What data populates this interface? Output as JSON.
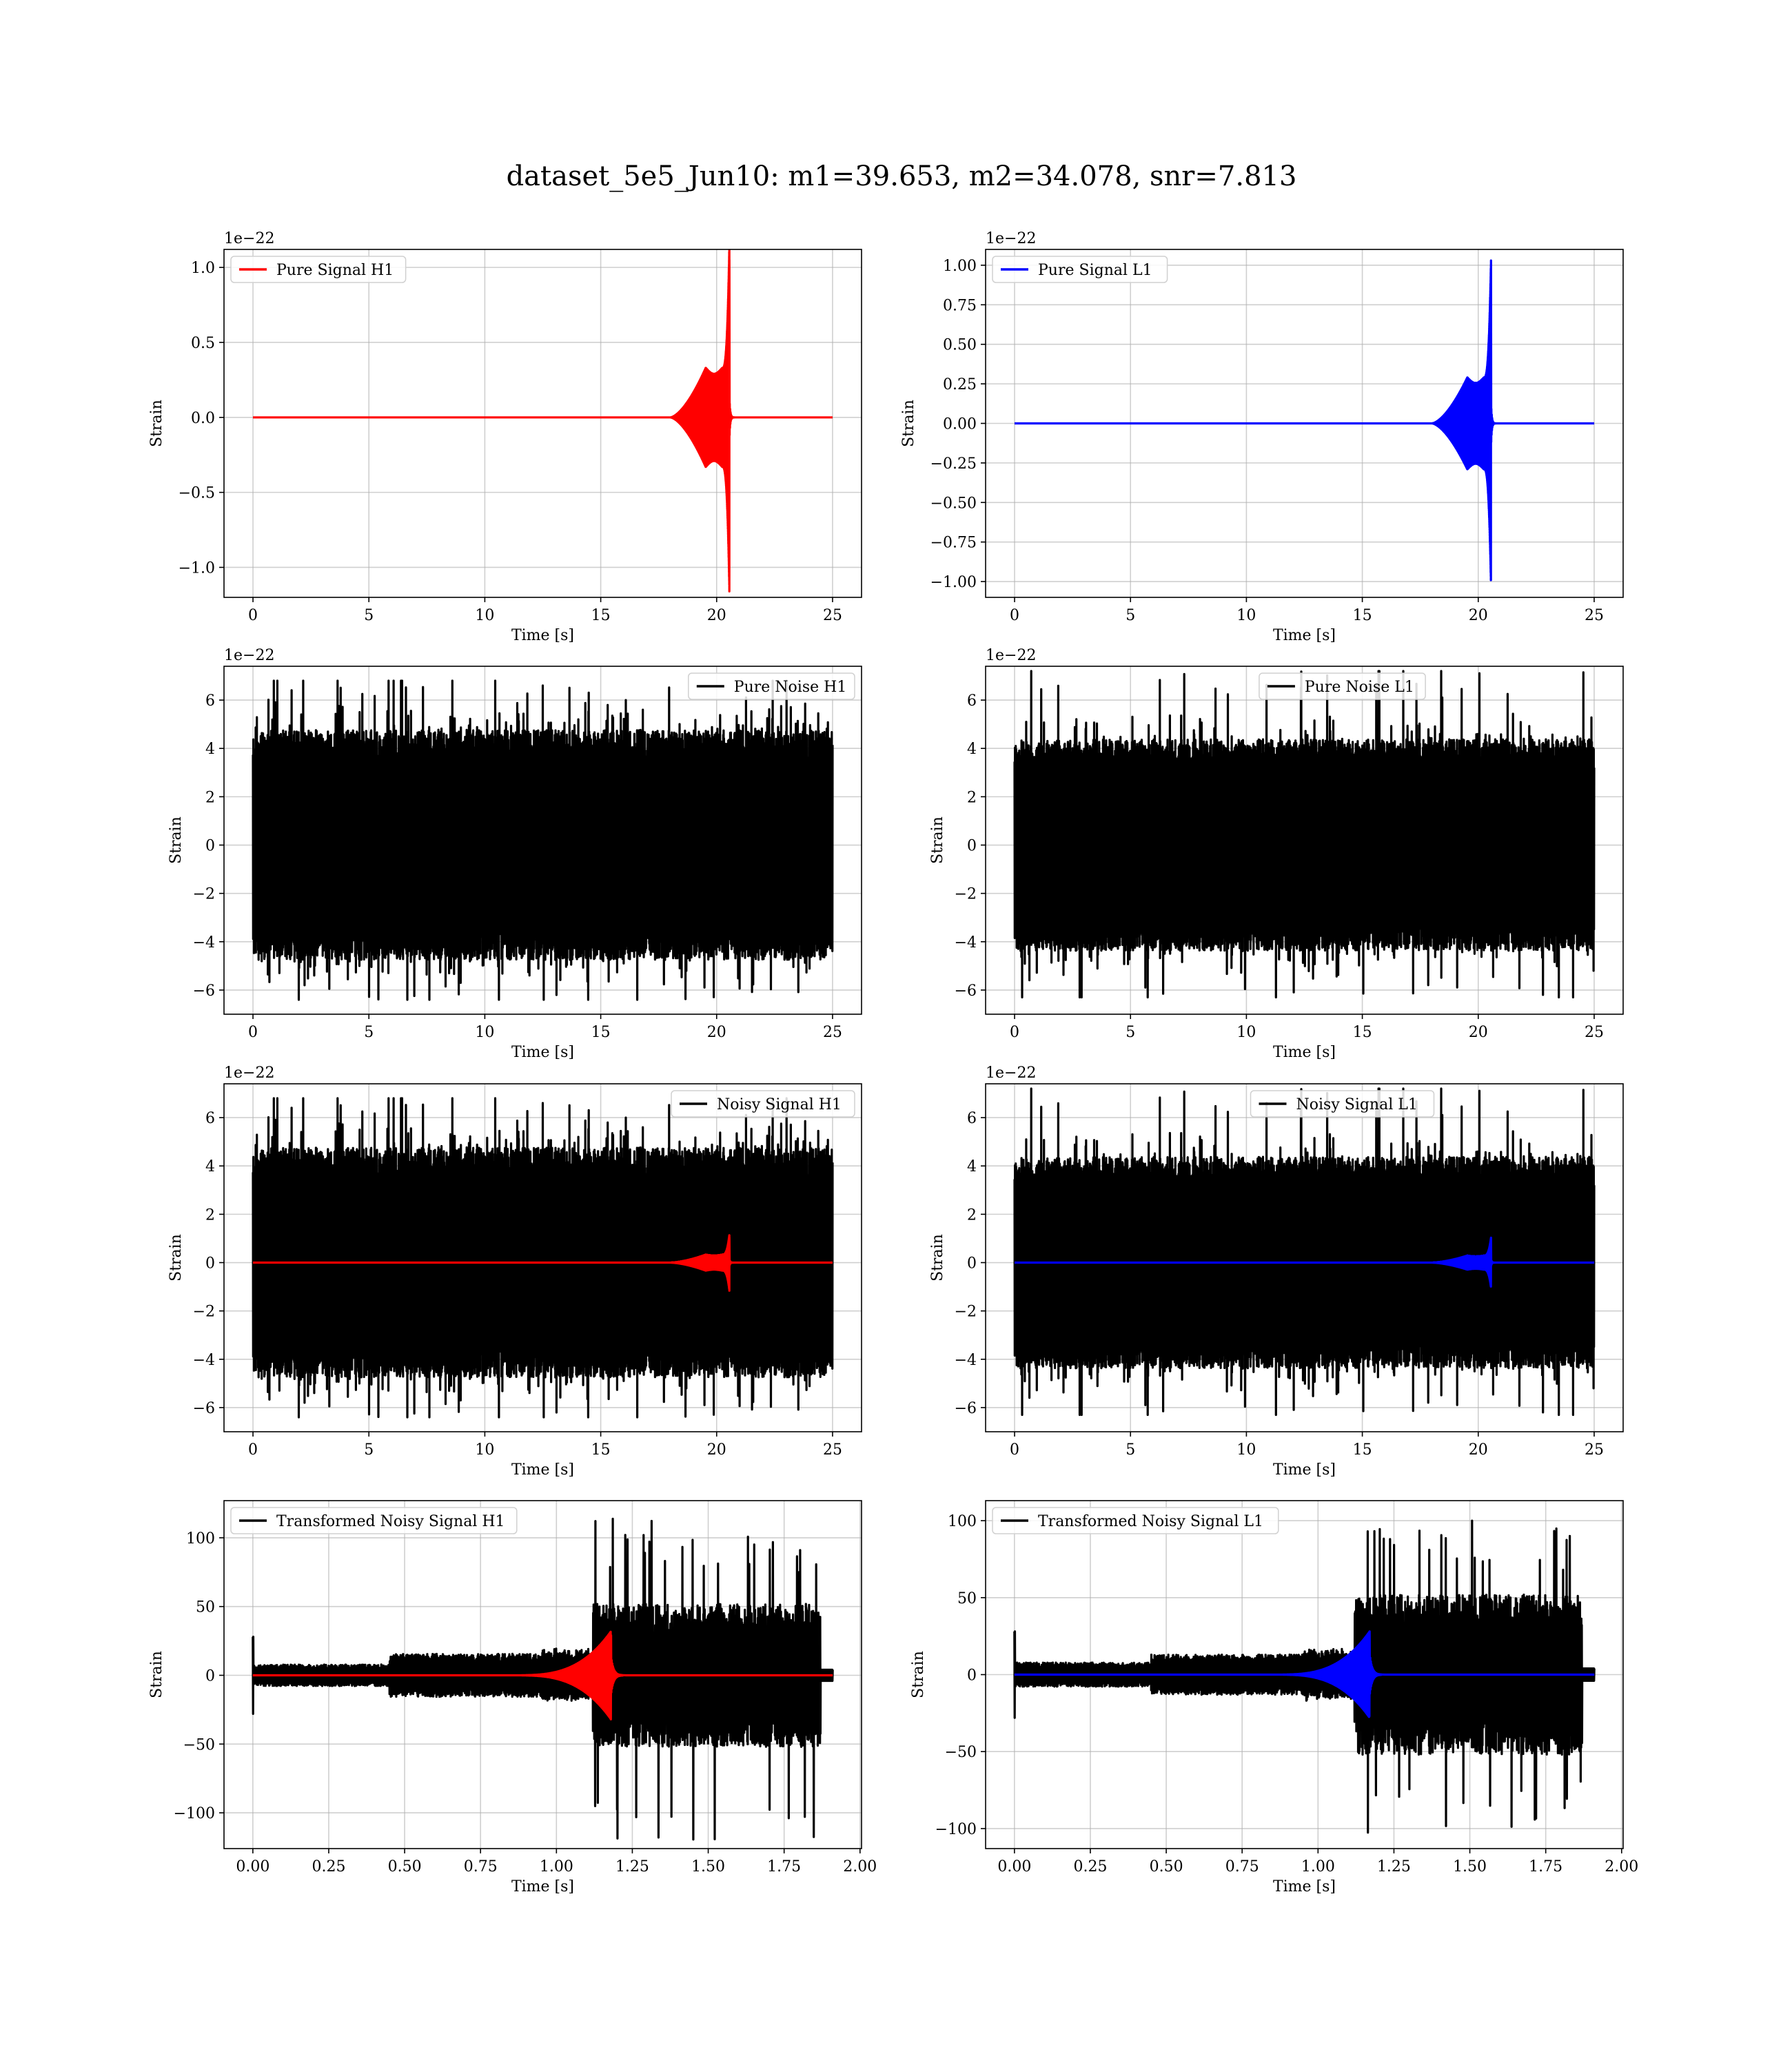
{
  "figure": {
    "title": "dataset_5e5_Jun10: m1=39.653, m2=34.078, snr=7.813"
  },
  "chart_data": [
    {
      "id": "pure-signal-h1",
      "type": "line",
      "xlabel": "Time [s]",
      "ylabel": "Strain",
      "offset_text": "1e−22",
      "xlim": [
        -1.25,
        26.25
      ],
      "ylim": [
        -1.2,
        1.12
      ],
      "xticks": [
        0,
        5,
        10,
        15,
        20,
        25
      ],
      "xtick_labels": [
        "0",
        "5",
        "10",
        "15",
        "20",
        "25"
      ],
      "yticks": [
        -1.0,
        -0.5,
        0.0,
        0.5,
        1.0
      ],
      "ytick_labels": [
        "−1.0",
        "−0.5",
        "0.0",
        "0.5",
        "1.0"
      ],
      "grid": true,
      "legend_position": "upper-left",
      "series": [
        {
          "name": "Pure Signal H1",
          "color": "#ff0000",
          "kind": "chirp",
          "x_range": [
            0,
            25
          ],
          "chirp_start": 18.0,
          "merger": 20.55,
          "peak_pos": 1.05,
          "peak_neg": -1.16,
          "envelope_max": 0.33
        }
      ]
    },
    {
      "id": "pure-signal-l1",
      "type": "line",
      "xlabel": "Time [s]",
      "ylabel": "Strain",
      "offset_text": "1e−22",
      "xlim": [
        -1.25,
        26.25
      ],
      "ylim": [
        -1.1,
        1.1
      ],
      "xticks": [
        0,
        5,
        10,
        15,
        20,
        25
      ],
      "xtick_labels": [
        "0",
        "5",
        "10",
        "15",
        "20",
        "25"
      ],
      "yticks": [
        -1.0,
        -0.75,
        -0.5,
        -0.25,
        0.0,
        0.25,
        0.5,
        0.75,
        1.0
      ],
      "ytick_labels": [
        "−1.00",
        "−0.75",
        "−0.50",
        "−0.25",
        "0.00",
        "0.25",
        "0.50",
        "0.75",
        "1.00"
      ],
      "grid": true,
      "legend_position": "upper-left",
      "series": [
        {
          "name": "Pure Signal L1",
          "color": "#0000ff",
          "kind": "chirp",
          "x_range": [
            0,
            25
          ],
          "chirp_start": 18.0,
          "merger": 20.55,
          "peak_pos": 1.03,
          "peak_neg": -0.99,
          "envelope_max": 0.29
        }
      ]
    },
    {
      "id": "pure-noise-h1",
      "type": "line",
      "xlabel": "Time [s]",
      "ylabel": "Strain",
      "offset_text": "1e−22",
      "xlim": [
        -1.25,
        26.25
      ],
      "ylim": [
        -7.0,
        7.4
      ],
      "xticks": [
        0,
        5,
        10,
        15,
        20,
        25
      ],
      "xtick_labels": [
        "0",
        "5",
        "10",
        "15",
        "20",
        "25"
      ],
      "yticks": [
        -6,
        -4,
        -2,
        0,
        2,
        4,
        6
      ],
      "ytick_labels": [
        "−6",
        "−4",
        "−2",
        "0",
        "2",
        "4",
        "6"
      ],
      "grid": true,
      "legend_position": "upper-right",
      "series": [
        {
          "name": "Pure Noise H1",
          "color": "#000000",
          "kind": "noise",
          "x_range": [
            0,
            25
          ],
          "core_amp": 3.8,
          "max": 6.8,
          "min": -6.4,
          "seed": 11
        }
      ]
    },
    {
      "id": "pure-noise-l1",
      "type": "line",
      "xlabel": "Time [s]",
      "ylabel": "Strain",
      "offset_text": "1e−22",
      "xlim": [
        -1.25,
        26.25
      ],
      "ylim": [
        -7.0,
        7.4
      ],
      "xticks": [
        0,
        5,
        10,
        15,
        20,
        25
      ],
      "xtick_labels": [
        "0",
        "5",
        "10",
        "15",
        "20",
        "25"
      ],
      "yticks": [
        -6,
        -4,
        -2,
        0,
        2,
        4,
        6
      ],
      "ytick_labels": [
        "−6",
        "−4",
        "−2",
        "0",
        "2",
        "4",
        "6"
      ],
      "grid": true,
      "legend_position": "upper-center",
      "series": [
        {
          "name": "Pure Noise L1",
          "color": "#000000",
          "kind": "noise",
          "x_range": [
            0,
            25
          ],
          "core_amp": 3.5,
          "max": 7.2,
          "min": -6.3,
          "seed": 23
        }
      ]
    },
    {
      "id": "noisy-signal-h1",
      "type": "line",
      "xlabel": "Time [s]",
      "ylabel": "Strain",
      "offset_text": "1e−22",
      "xlim": [
        -1.25,
        26.25
      ],
      "ylim": [
        -7.0,
        7.4
      ],
      "xticks": [
        0,
        5,
        10,
        15,
        20,
        25
      ],
      "xtick_labels": [
        "0",
        "5",
        "10",
        "15",
        "20",
        "25"
      ],
      "yticks": [
        -6,
        -4,
        -2,
        0,
        2,
        4,
        6
      ],
      "ytick_labels": [
        "−6",
        "−4",
        "−2",
        "0",
        "2",
        "4",
        "6"
      ],
      "grid": true,
      "legend_position": "upper-right",
      "series": [
        {
          "name": "Noisy Signal H1",
          "color": "#000000",
          "kind": "noise",
          "x_range": [
            0,
            25
          ],
          "core_amp": 3.8,
          "max": 6.8,
          "min": -6.4,
          "seed": 11
        },
        {
          "color": "#ff0000",
          "kind": "chirp",
          "x_range": [
            0,
            25
          ],
          "chirp_start": 18.0,
          "merger": 20.55,
          "peak_pos": 1.05,
          "peak_neg": -1.16,
          "envelope_max": 0.33
        }
      ]
    },
    {
      "id": "noisy-signal-l1",
      "type": "line",
      "xlabel": "Time [s]",
      "ylabel": "Strain",
      "offset_text": "1e−22",
      "xlim": [
        -1.25,
        26.25
      ],
      "ylim": [
        -7.0,
        7.4
      ],
      "xticks": [
        0,
        5,
        10,
        15,
        20,
        25
      ],
      "xtick_labels": [
        "0",
        "5",
        "10",
        "15",
        "20",
        "25"
      ],
      "yticks": [
        -6,
        -4,
        -2,
        0,
        2,
        4,
        6
      ],
      "ytick_labels": [
        "−6",
        "−4",
        "−2",
        "0",
        "2",
        "4",
        "6"
      ],
      "grid": true,
      "legend_position": "upper-center",
      "series": [
        {
          "name": "Noisy Signal L1",
          "color": "#000000",
          "kind": "noise",
          "x_range": [
            0,
            25
          ],
          "core_amp": 3.5,
          "max": 7.2,
          "min": -6.3,
          "seed": 23
        },
        {
          "color": "#0000ff",
          "kind": "chirp",
          "x_range": [
            0,
            25
          ],
          "chirp_start": 18.0,
          "merger": 20.55,
          "peak_pos": 1.03,
          "peak_neg": -0.99,
          "envelope_max": 0.29
        }
      ]
    },
    {
      "id": "transformed-noisy-signal-h1",
      "type": "line",
      "xlabel": "Time [s]",
      "ylabel": "Strain",
      "offset_text": "",
      "xlim": [
        -0.095,
        2.005
      ],
      "ylim": [
        -126,
        127
      ],
      "xticks": [
        0.0,
        0.25,
        0.5,
        0.75,
        1.0,
        1.25,
        1.5,
        1.75,
        2.0
      ],
      "xtick_labels": [
        "0.00",
        "0.25",
        "0.50",
        "0.75",
        "1.00",
        "1.25",
        "1.50",
        "1.75",
        "2.00"
      ],
      "yticks": [
        -100,
        -50,
        0,
        50,
        100
      ],
      "ytick_labels": [
        "−100",
        "−50",
        "0",
        "50",
        "100"
      ],
      "grid": true,
      "legend_position": "upper-left",
      "series": [
        {
          "name": "Transformed Noisy Signal H1",
          "color": "#000000",
          "kind": "whitened",
          "x_range": [
            0,
            1.91
          ],
          "jump_at": 1.12,
          "end_at": 1.87,
          "early_amp": 6,
          "mid_amp": 12,
          "late_amp": 40,
          "max": 115,
          "min": -123,
          "seed": 37
        },
        {
          "color": "#ff0000",
          "kind": "whitened-chirp",
          "x_range": [
            0,
            1.91
          ],
          "chirp_start": 0.85,
          "merger": 1.18,
          "peak_pos": 29,
          "peak_neg": -32
        }
      ]
    },
    {
      "id": "transformed-noisy-signal-l1",
      "type": "line",
      "xlabel": "Time [s]",
      "ylabel": "Strain",
      "offset_text": "",
      "xlim": [
        -0.095,
        2.005
      ],
      "ylim": [
        -113,
        113
      ],
      "xticks": [
        0.0,
        0.25,
        0.5,
        0.75,
        1.0,
        1.25,
        1.5,
        1.75,
        2.0
      ],
      "xtick_labels": [
        "0.00",
        "0.25",
        "0.50",
        "0.75",
        "1.00",
        "1.25",
        "1.50",
        "1.75",
        "2.00"
      ],
      "yticks": [
        -100,
        -50,
        0,
        50,
        100
      ],
      "ytick_labels": [
        "−100",
        "−50",
        "0",
        "50",
        "100"
      ],
      "grid": true,
      "legend_position": "upper-left",
      "series": [
        {
          "name": "Transformed Noisy Signal L1",
          "color": "#000000",
          "kind": "whitened",
          "x_range": [
            0,
            1.91
          ],
          "jump_at": 1.12,
          "end_at": 1.87,
          "early_amp": 6,
          "mid_amp": 10,
          "late_amp": 40,
          "max": 100,
          "min": -103,
          "seed": 51
        },
        {
          "color": "#0000ff",
          "kind": "whitened-chirp",
          "x_range": [
            0,
            1.91
          ],
          "chirp_start": 0.85,
          "merger": 1.17,
          "peak_pos": 28,
          "peak_neg": -27
        }
      ]
    }
  ]
}
